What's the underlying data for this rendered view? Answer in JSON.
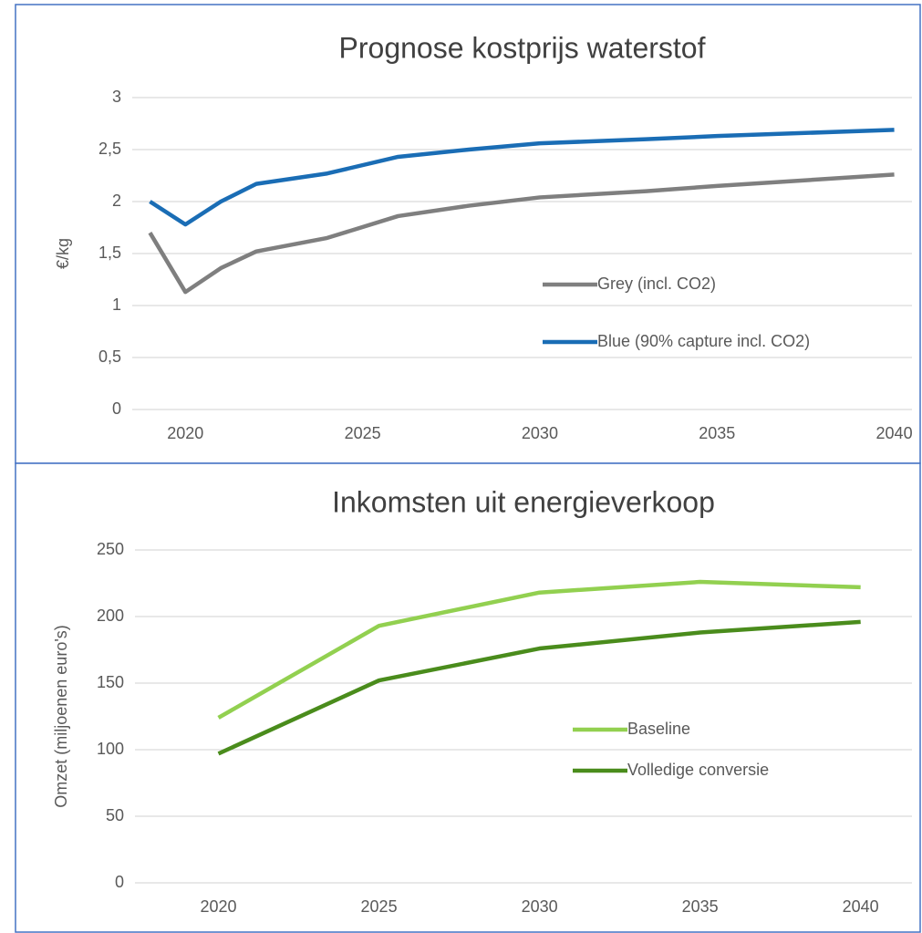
{
  "chart_data": [
    {
      "type": "line",
      "title": "Prognose kostprijs waterstof",
      "y_label": "€/kg",
      "x": [
        2019,
        2020,
        2021,
        2022,
        2024,
        2026,
        2028,
        2030,
        2033,
        2035,
        2040
      ],
      "series": [
        {
          "name": "Grey (incl. CO2)",
          "color": "#7f7f7f",
          "values": [
            1.7,
            1.13,
            1.36,
            1.52,
            1.65,
            1.86,
            1.96,
            2.04,
            2.1,
            2.15,
            2.26
          ]
        },
        {
          "name": "Blue (90% capture incl. CO2)",
          "color": "#1a6db5",
          "values": [
            2.0,
            1.78,
            2.0,
            2.17,
            2.27,
            2.43,
            2.5,
            2.56,
            2.6,
            2.63,
            2.69
          ]
        }
      ],
      "xlim": [
        2018.5,
        2040.5
      ],
      "xticks": [
        2020,
        2025,
        2030,
        2035,
        2040
      ],
      "ylim": [
        0,
        3
      ],
      "yticks": [
        0,
        {
          "value": 0.5,
          "label": "0,5"
        },
        1,
        {
          "value": 1.5,
          "label": "1,5"
        },
        2,
        {
          "value": 2.5,
          "label": "2,5"
        },
        3
      ],
      "grid": true,
      "legend_position": "right"
    },
    {
      "type": "line",
      "title": "Inkomsten uit energieverkoop",
      "y_label": "Omzet (miljoenen euro's)",
      "x": [
        2020,
        2025,
        2030,
        2035,
        2040
      ],
      "series": [
        {
          "name": "Baseline",
          "color": "#92d050",
          "values": [
            124,
            193,
            218,
            226,
            222
          ]
        },
        {
          "name": "Volledige conversie",
          "color": "#4a8c1c",
          "values": [
            97,
            152,
            176,
            188,
            196
          ]
        }
      ],
      "xlim": [
        2017.4,
        2041.6
      ],
      "xticks": [
        2020,
        2025,
        2030,
        2035,
        2040
      ],
      "ylim": [
        0,
        250
      ],
      "yticks": [
        0,
        50,
        100,
        150,
        200,
        250
      ],
      "grid": true,
      "legend_position": "right"
    }
  ]
}
